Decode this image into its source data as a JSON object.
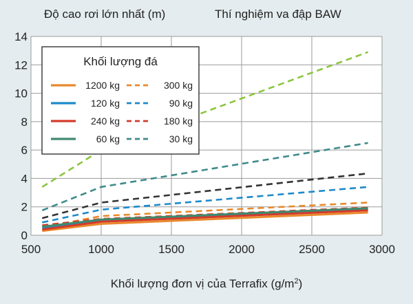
{
  "chart_data": {
    "type": "line",
    "title_left": "Độ cao rơi lớn nhất (m)",
    "title_right": "Thí nghiệm va đập BAW",
    "xlabel": "Khối lượng đơn vị của Terrafix (g/m",
    "xlabel_sup": "2",
    "xlabel_end": ")",
    "xlim": [
      500,
      3000
    ],
    "ylim": [
      0,
      14
    ],
    "xticks": [
      500,
      1000,
      1500,
      2000,
      2500,
      3000
    ],
    "yticks": [
      0,
      2,
      4,
      6,
      8,
      10,
      12,
      14
    ],
    "grid": true,
    "legend_title": "Khối lượng đá",
    "legend_position": "top-left",
    "series": [
      {
        "name": "1200 kg",
        "color": "#e8892a",
        "dash": "solid",
        "x": [
          580,
          1000,
          2900
        ],
        "y": [
          0.3,
          0.8,
          1.6
        ]
      },
      {
        "name": "300 kg",
        "color": "#e8892a",
        "dash": "dashed",
        "x": [
          580,
          1000,
          2900
        ],
        "y": [
          0.55,
          1.35,
          2.3
        ]
      },
      {
        "name": "120 kg",
        "color": "#1c8ac9",
        "dash": "solid",
        "x": [
          580,
          1000,
          2900
        ],
        "y": [
          0.5,
          1.0,
          1.85
        ]
      },
      {
        "name": "90 kg",
        "color": "#1c8ac9",
        "dash": "dashed",
        "x": [
          580,
          1000,
          2900
        ],
        "y": [
          0.9,
          1.8,
          3.4
        ]
      },
      {
        "name": "240 kg",
        "color": "#d43a2a",
        "dash": "solid",
        "x": [
          580,
          1000,
          2900
        ],
        "y": [
          0.4,
          0.95,
          1.75
        ]
      },
      {
        "name": "180 kg",
        "color": "#d43a2a",
        "dash": "dashed",
        "x": [
          580,
          1000,
          2900
        ],
        "y": [
          0.7,
          1.15,
          1.95
        ]
      },
      {
        "name": "60 kg",
        "color": "#3f8a6e",
        "dash": "solid",
        "x": [
          580,
          1000,
          2900
        ],
        "y": [
          0.6,
          1.1,
          1.9
        ]
      },
      {
        "name": "30 kg",
        "color": "#3f8a8a",
        "dash": "dashed",
        "x": [
          580,
          1000,
          2900
        ],
        "y": [
          1.75,
          3.4,
          6.5
        ]
      },
      {
        "name": "",
        "color": "#333333",
        "dash": "dashed",
        "x": [
          580,
          1000,
          2900
        ],
        "y": [
          1.2,
          2.3,
          4.35
        ]
      },
      {
        "name": "",
        "color": "#8bc53f",
        "dash": "dashed",
        "x": [
          580,
          1000,
          2900
        ],
        "y": [
          3.4,
          6.0,
          12.9
        ]
      }
    ],
    "legend_rows": [
      {
        "left": "1200 kg",
        "left_color": "#e8892a",
        "right": "300 kg",
        "right_color": "#e8892a"
      },
      {
        "left": "120 kg",
        "left_color": "#1c8ac9",
        "right": "90 kg",
        "right_color": "#1c8ac9"
      },
      {
        "left": "240 kg",
        "left_color": "#d43a2a",
        "right": "180 kg",
        "right_color": "#d43a2a"
      },
      {
        "left": "60 kg",
        "left_color": "#3f8a6e",
        "right": "30 kg",
        "right_color": "#3f8a8a"
      }
    ]
  }
}
